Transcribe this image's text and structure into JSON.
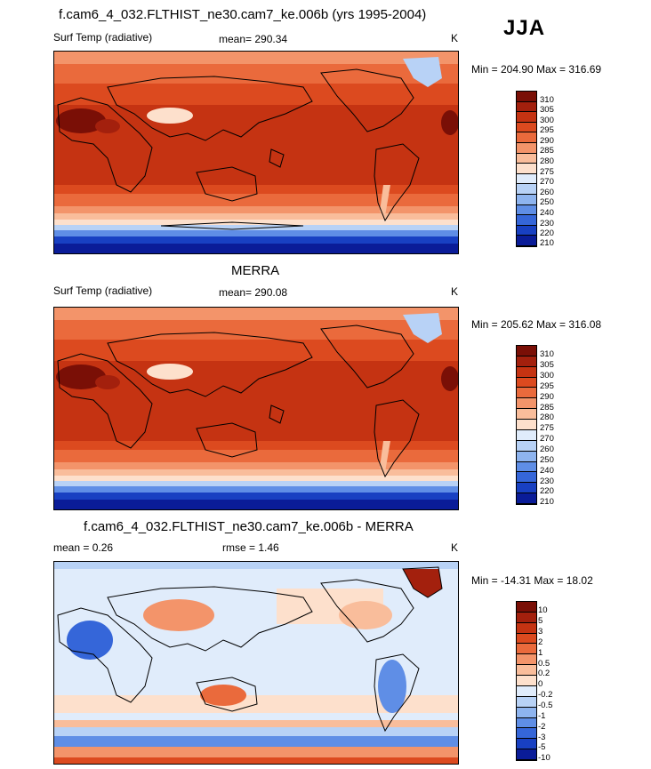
{
  "season": "JJA",
  "panels": [
    {
      "title": "f.cam6_4_032.FLTHIST_ne30.cam7_ke.006b (yrs 1995-2004)",
      "left_label": "Surf Temp (radiative)",
      "center_label": "mean= 290.34",
      "unit": "K",
      "minmax": "Min = 204.90 Max = 316.69",
      "colorbar": [
        "310",
        "305",
        "300",
        "295",
        "290",
        "285",
        "280",
        "275",
        "270",
        "260",
        "250",
        "240",
        "230",
        "220",
        "210"
      ]
    },
    {
      "title": "MERRA",
      "left_label": "Surf Temp (radiative)",
      "center_label": "mean= 290.08",
      "unit": "K",
      "minmax": "Min = 205.62 Max = 316.08",
      "colorbar": [
        "310",
        "305",
        "300",
        "295",
        "290",
        "285",
        "280",
        "275",
        "270",
        "260",
        "250",
        "240",
        "230",
        "220",
        "210"
      ]
    },
    {
      "title": "f.cam6_4_032.FLTHIST_ne30.cam7_ke.006b - MERRA",
      "left_label": "mean =   0.26",
      "center_label": "rmse =   1.46",
      "unit": "K",
      "minmax": "Min = -14.31 Max =  18.02",
      "colorbar": [
        "10",
        "5",
        "3",
        "2",
        "1",
        "0.5",
        "0.2",
        "0",
        "-0.2",
        "-0.5",
        "-1",
        "-2",
        "-3",
        "-5",
        "-10"
      ]
    }
  ],
  "colors": {
    "temp_scale": [
      "#7a0f06",
      "#a3200d",
      "#c53312",
      "#dc4a1f",
      "#ea6a3c",
      "#f3946a",
      "#f9bd9b",
      "#fde0cc",
      "#e0ecfb",
      "#b8d2f6",
      "#8eb4ef",
      "#5f8ee6",
      "#3566d9",
      "#1840c2",
      "#0a1c98",
      "#00006e"
    ],
    "diff_scale": [
      "#7a0f06",
      "#a3200d",
      "#c53312",
      "#dc4a1f",
      "#ea6a3c",
      "#f3946a",
      "#f9bd9b",
      "#fde0cc",
      "#e0ecfb",
      "#b8d2f6",
      "#8eb4ef",
      "#5f8ee6",
      "#3566d9",
      "#1840c2",
      "#0a1c98",
      "#00006e"
    ]
  }
}
